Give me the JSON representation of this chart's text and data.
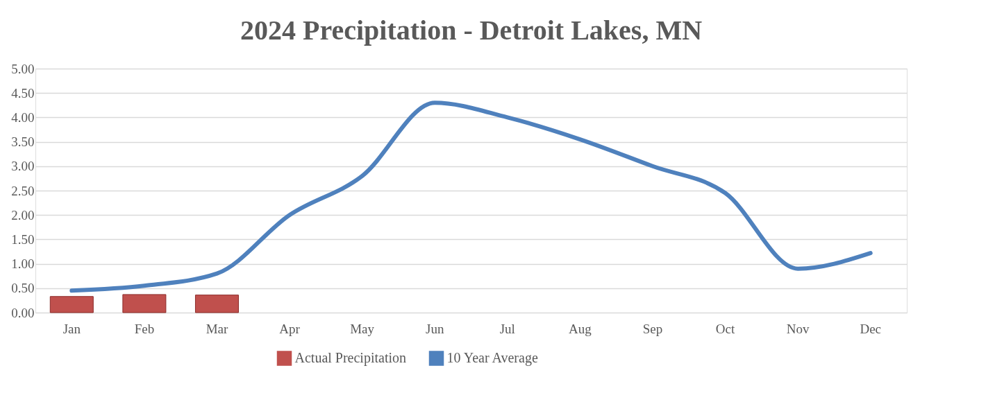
{
  "chart_data": {
    "type": "bar",
    "title": "2024 Precipitation - Detroit Lakes, MN",
    "categories": [
      "Jan",
      "Feb",
      "Mar",
      "Apr",
      "May",
      "Jun",
      "Jul",
      "Aug",
      "Sep",
      "Oct",
      "Nov",
      "Dec"
    ],
    "series": [
      {
        "name": "Actual Precipitation",
        "color": "#c0504d",
        "values": [
          0.33,
          0.37,
          0.36,
          null,
          null,
          null,
          null,
          null,
          null,
          null,
          null,
          null
        ]
      },
      {
        "name": "10 Year Average",
        "type": "line",
        "color": "#4f81bd",
        "values": [
          0.45,
          0.55,
          0.8,
          2.0,
          2.8,
          4.3,
          4.0,
          3.55,
          3.0,
          2.45,
          0.9,
          1.22
        ]
      }
    ],
    "ylim": [
      0,
      5
    ],
    "yticks": [
      {
        "value": 0,
        "label": "0.00"
      },
      {
        "value": 0.5,
        "label": "0.50"
      },
      {
        "value": 1,
        "label": "1.00"
      },
      {
        "value": 1.5,
        "label": "1.50"
      },
      {
        "value": 2,
        "label": "2.00"
      },
      {
        "value": 2.5,
        "label": "2.50"
      },
      {
        "value": 3,
        "label": "3.00"
      },
      {
        "value": 3.5,
        "label": "3.50"
      },
      {
        "value": 4,
        "label": "4.00"
      },
      {
        "value": 4.5,
        "label": "4.50"
      },
      {
        "value": 5,
        "label": "5.00"
      }
    ],
    "grid": "y",
    "legend": "bottom",
    "marker": "none",
    "line_style": "solid"
  }
}
